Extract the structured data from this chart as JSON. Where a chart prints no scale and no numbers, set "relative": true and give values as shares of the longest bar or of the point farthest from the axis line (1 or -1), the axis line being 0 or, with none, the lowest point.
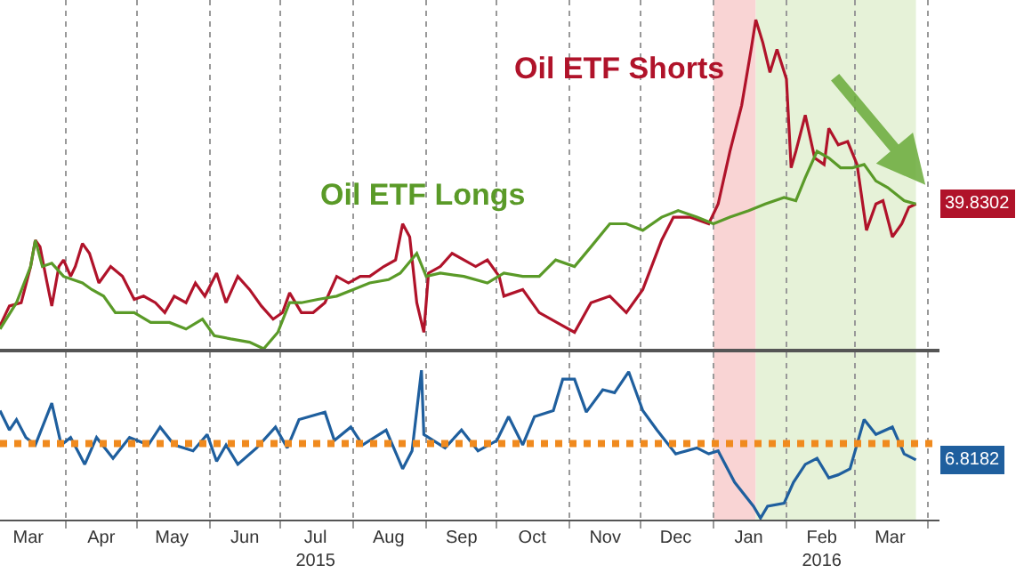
{
  "chart_data": [
    {
      "type": "line",
      "relative": true,
      "xlim": [
        "2015-03-04",
        "2016-04-06"
      ],
      "tick_labels": false,
      "grid": "x",
      "annotations": [
        "39.8302"
      ],
      "legend": false,
      "marker": "none",
      "line_style": "solid",
      "xticks": [
        {
          "value": "2015-04-01",
          "label": null
        },
        {
          "value": "2015-05-01",
          "label": null
        },
        {
          "value": "2015-06-01",
          "label": null
        },
        {
          "value": "2015-07-01",
          "label": null
        },
        {
          "value": "2015-08-01",
          "label": null
        },
        {
          "value": "2015-09-01",
          "label": null
        },
        {
          "value": "2015-10-01",
          "label": null
        },
        {
          "value": "2015-11-01",
          "label": null
        },
        {
          "value": "2015-12-01",
          "label": null
        },
        {
          "value": "2016-01-01",
          "label": null
        },
        {
          "value": "2016-02-01",
          "label": null
        },
        {
          "value": "2016-03-01",
          "label": null
        },
        {
          "value": "2016-04-01",
          "label": null
        }
      ],
      "bands": [
        {
          "axis": "x",
          "from": "2016-01-01",
          "to": "2016-01-19",
          "color": "#f9d4d4"
        },
        {
          "axis": "x",
          "from": "2016-01-19",
          "to": "2016-03-27",
          "color": "#e6f2d8"
        }
      ],
      "series": [
        {
          "name": "Oil ETF Shorts",
          "color": "#b0132a",
          "x": [
            "2015-03-04",
            "2015-03-08",
            "2015-03-13",
            "2015-03-17",
            "2015-03-19",
            "2015-03-21",
            "2015-03-24",
            "2015-03-26",
            "2015-03-29",
            "2015-03-31",
            "2015-04-03",
            "2015-04-05",
            "2015-04-08",
            "2015-04-11",
            "2015-04-15",
            "2015-04-20",
            "2015-04-25",
            "2015-04-30",
            "2015-05-04",
            "2015-05-09",
            "2015-05-13",
            "2015-05-17",
            "2015-05-22",
            "2015-05-26",
            "2015-05-30",
            "2015-06-04",
            "2015-06-08",
            "2015-06-13",
            "2015-06-18",
            "2015-06-23",
            "2015-06-28",
            "2015-07-02",
            "2015-07-05",
            "2015-07-10",
            "2015-07-15",
            "2015-07-20",
            "2015-07-25",
            "2015-07-30",
            "2015-08-04",
            "2015-08-08",
            "2015-08-14",
            "2015-08-19",
            "2015-08-22",
            "2015-08-25",
            "2015-08-28",
            "2015-08-31",
            "2015-09-02",
            "2015-09-07",
            "2015-09-12",
            "2015-09-17",
            "2015-09-22",
            "2015-09-27",
            "2015-10-02",
            "2015-10-04",
            "2015-10-12",
            "2015-10-19",
            "2015-10-29",
            "2015-11-03",
            "2015-11-10",
            "2015-11-18",
            "2015-11-25",
            "2015-12-02",
            "2015-12-10",
            "2015-12-15",
            "2015-12-22",
            "2015-12-30",
            "2016-01-03",
            "2016-01-08",
            "2016-01-13",
            "2016-01-17",
            "2016-01-19",
            "2016-01-22",
            "2016-01-25",
            "2016-01-28",
            "2016-02-01",
            "2016-02-03",
            "2016-02-05",
            "2016-02-09",
            "2016-02-13",
            "2016-02-17",
            "2016-02-19",
            "2016-02-23",
            "2016-02-27",
            "2016-03-02",
            "2016-03-06",
            "2016-03-10",
            "2016-03-13",
            "2016-03-17",
            "2016-03-21",
            "2016-03-24",
            "2016-03-27"
          ],
          "values": [
            0.07,
            0.13,
            0.14,
            0.25,
            0.33,
            0.31,
            0.2,
            0.13,
            0.25,
            0.27,
            0.22,
            0.25,
            0.32,
            0.29,
            0.2,
            0.25,
            0.22,
            0.15,
            0.16,
            0.14,
            0.11,
            0.16,
            0.14,
            0.2,
            0.16,
            0.23,
            0.14,
            0.22,
            0.18,
            0.13,
            0.09,
            0.11,
            0.17,
            0.11,
            0.11,
            0.14,
            0.22,
            0.2,
            0.22,
            0.22,
            0.25,
            0.27,
            0.38,
            0.34,
            0.14,
            0.05,
            0.23,
            0.25,
            0.29,
            0.27,
            0.25,
            0.27,
            0.22,
            0.16,
            0.18,
            0.11,
            0.07,
            0.05,
            0.14,
            0.16,
            0.11,
            0.18,
            0.33,
            0.4,
            0.4,
            0.38,
            0.44,
            0.6,
            0.74,
            0.91,
            1,
            0.93,
            0.84,
            0.91,
            0.82,
            0.55,
            0.6,
            0.71,
            0.58,
            0.56,
            0.67,
            0.62,
            0.63,
            0.56,
            0.36,
            0.44,
            0.45,
            0.34,
            0.38,
            0.43,
            0.44
          ]
        },
        {
          "name": "Oil ETF Longs",
          "color": "#5a9a28",
          "x": [
            "2015-03-04",
            "2015-03-11",
            "2015-03-17",
            "2015-03-19",
            "2015-03-22",
            "2015-03-26",
            "2015-03-31",
            "2015-04-08",
            "2015-04-12",
            "2015-04-17",
            "2015-04-22",
            "2015-04-30",
            "2015-05-07",
            "2015-05-15",
            "2015-05-22",
            "2015-05-29",
            "2015-06-03",
            "2015-06-10",
            "2015-06-18",
            "2015-06-24",
            "2015-06-30",
            "2015-07-05",
            "2015-07-10",
            "2015-07-17",
            "2015-07-25",
            "2015-08-01",
            "2015-08-08",
            "2015-08-16",
            "2015-08-21",
            "2015-08-28",
            "2015-09-01",
            "2015-09-07",
            "2015-09-17",
            "2015-09-27",
            "2015-10-04",
            "2015-10-12",
            "2015-10-19",
            "2015-10-26",
            "2015-11-03",
            "2015-11-10",
            "2015-11-18",
            "2015-11-25",
            "2015-12-02",
            "2015-12-10",
            "2015-12-17",
            "2015-12-25",
            "2016-01-01",
            "2016-01-08",
            "2016-01-16",
            "2016-01-23",
            "2016-01-31",
            "2016-02-05",
            "2016-02-09",
            "2016-02-14",
            "2016-02-19",
            "2016-02-24",
            "2016-02-29",
            "2016-03-05",
            "2016-03-10",
            "2016-03-15",
            "2016-03-22",
            "2016-03-27"
          ],
          "values": [
            0.06,
            0.14,
            0.25,
            0.33,
            0.25,
            0.26,
            0.22,
            0.2,
            0.18,
            0.16,
            0.11,
            0.11,
            0.08,
            0.08,
            0.06,
            0.09,
            0.04,
            0.03,
            0.02,
            0,
            0.05,
            0.14,
            0.14,
            0.15,
            0.16,
            0.18,
            0.2,
            0.21,
            0.23,
            0.29,
            0.22,
            0.23,
            0.22,
            0.2,
            0.23,
            0.22,
            0.22,
            0.27,
            0.25,
            0.31,
            0.38,
            0.38,
            0.36,
            0.4,
            0.42,
            0.4,
            0.38,
            0.4,
            0.42,
            0.44,
            0.46,
            0.45,
            0.52,
            0.6,
            0.58,
            0.55,
            0.55,
            0.56,
            0.51,
            0.49,
            0.45,
            0.44
          ]
        }
      ]
    },
    {
      "type": "line",
      "relative": true,
      "xlim": [
        "2015-03-04",
        "2016-04-06"
      ],
      "tick_labels": "x",
      "grid": "x",
      "annotations": [
        "6.8182"
      ],
      "legend": false,
      "marker": "none",
      "line_style": "solid",
      "xticks": [
        {
          "value": "2015-03-16",
          "label": "Mar"
        },
        {
          "value": "2015-04-16",
          "label": "Apr"
        },
        {
          "value": "2015-05-16",
          "label": "May"
        },
        {
          "value": "2015-06-16",
          "label": "Jun"
        },
        {
          "value": "2015-07-16",
          "label": "Jul\n2015"
        },
        {
          "value": "2015-08-16",
          "label": "Aug"
        },
        {
          "value": "2015-09-16",
          "label": "Sep"
        },
        {
          "value": "2015-10-16",
          "label": "Oct"
        },
        {
          "value": "2015-11-16",
          "label": "Nov"
        },
        {
          "value": "2015-12-16",
          "label": "Dec"
        },
        {
          "value": "2016-01-16",
          "label": "Jan"
        },
        {
          "value": "2016-02-16",
          "label": "Feb\n2016"
        },
        {
          "value": "2016-03-16",
          "label": "Mar"
        },
        {
          "value": "2015-04-01",
          "label": null
        },
        {
          "value": "2015-05-01",
          "label": null
        },
        {
          "value": "2015-06-01",
          "label": null
        },
        {
          "value": "2015-07-01",
          "label": null
        },
        {
          "value": "2015-08-01",
          "label": null
        },
        {
          "value": "2015-09-01",
          "label": null
        },
        {
          "value": "2015-10-01",
          "label": null
        },
        {
          "value": "2015-11-01",
          "label": null
        },
        {
          "value": "2015-12-01",
          "label": null
        },
        {
          "value": "2016-01-01",
          "label": null
        },
        {
          "value": "2016-02-01",
          "label": null
        },
        {
          "value": "2016-03-01",
          "label": null
        },
        {
          "value": "2016-04-01",
          "label": null
        }
      ],
      "bands": [
        {
          "axis": "x",
          "from": "2016-01-01",
          "to": "2016-01-19",
          "color": "#f9d4d4"
        },
        {
          "axis": "x",
          "from": "2016-01-19",
          "to": "2016-03-27",
          "color": "#e6f2d8"
        }
      ],
      "ref_lines": [
        {
          "axis": "y",
          "value": 0.51,
          "color": "#f08a1e",
          "line_style": "dotted"
        }
      ],
      "series": [
        {
          "color": "#1f5f9e",
          "x": [
            "2015-03-04",
            "2015-03-08",
            "2015-03-11",
            "2015-03-15",
            "2015-03-19",
            "2015-03-26",
            "2015-03-30",
            "2015-04-03",
            "2015-04-09",
            "2015-04-14",
            "2015-04-21",
            "2015-04-28",
            "2015-05-06",
            "2015-05-11",
            "2015-05-17",
            "2015-05-25",
            "2015-05-31",
            "2015-06-04",
            "2015-06-08",
            "2015-06-13",
            "2015-06-21",
            "2015-06-29",
            "2015-07-04",
            "2015-07-09",
            "2015-07-20",
            "2015-07-24",
            "2015-07-31",
            "2015-08-05",
            "2015-08-15",
            "2015-08-22",
            "2015-08-26",
            "2015-08-30",
            "2015-08-31",
            "2015-09-09",
            "2015-09-16",
            "2015-09-23",
            "2015-10-01",
            "2015-10-06",
            "2015-10-12",
            "2015-10-17",
            "2015-10-25",
            "2015-10-29",
            "2015-11-03",
            "2015-11-08",
            "2015-11-15",
            "2015-11-20",
            "2015-11-26",
            "2015-12-02",
            "2015-12-08",
            "2015-12-16",
            "2015-12-25",
            "2015-12-30",
            "2016-01-03",
            "2016-01-10",
            "2016-01-18",
            "2016-01-21",
            "2016-01-24",
            "2016-01-31",
            "2016-02-04",
            "2016-02-09",
            "2016-02-14",
            "2016-02-19",
            "2016-02-23",
            "2016-02-28",
            "2016-03-05",
            "2016-03-10",
            "2016-03-17",
            "2016-03-22",
            "2016-03-27"
          ],
          "values": [
            0.73,
            0.6,
            0.67,
            0.55,
            0.5,
            0.78,
            0.5,
            0.55,
            0.37,
            0.55,
            0.41,
            0.55,
            0.5,
            0.62,
            0.5,
            0.46,
            0.57,
            0.39,
            0.5,
            0.37,
            0.48,
            0.62,
            0.48,
            0.67,
            0.72,
            0.53,
            0.62,
            0.5,
            0.6,
            0.34,
            0.46,
            1,
            0.57,
            0.48,
            0.6,
            0.46,
            0.53,
            0.69,
            0.5,
            0.69,
            0.73,
            0.94,
            0.94,
            0.72,
            0.87,
            0.85,
            0.99,
            0.73,
            0.6,
            0.44,
            0.48,
            0.44,
            0.46,
            0.25,
            0.09,
            0.01,
            0.09,
            0.11,
            0.25,
            0.37,
            0.41,
            0.28,
            0.3,
            0.34,
            0.67,
            0.57,
            0.62,
            0.44,
            0.4
          ]
        }
      ]
    }
  ]
}
